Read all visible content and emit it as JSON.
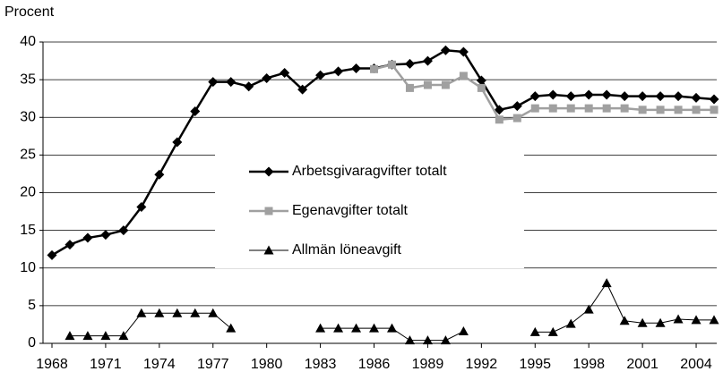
{
  "chart_data": {
    "type": "line",
    "y_label": "Procent",
    "x": [
      1968,
      1969,
      1970,
      1971,
      1972,
      1973,
      1974,
      1975,
      1976,
      1977,
      1978,
      1979,
      1980,
      1981,
      1982,
      1983,
      1984,
      1985,
      1986,
      1987,
      1988,
      1989,
      1990,
      1991,
      1992,
      1993,
      1994,
      1995,
      1996,
      1997,
      1998,
      1999,
      2000,
      2001,
      2002,
      2003,
      2004,
      2005
    ],
    "xlim": [
      1967.5,
      2005.5
    ],
    "xticks": [
      1968,
      1971,
      1974,
      1977,
      1980,
      1983,
      1986,
      1989,
      1992,
      1995,
      1998,
      2001,
      2004
    ],
    "ylim": [
      0,
      40
    ],
    "yticks": [
      0,
      5,
      10,
      15,
      20,
      25,
      30,
      35,
      40
    ],
    "grid": true,
    "legend": "center",
    "series": [
      {
        "name": "Arbetsgivaragvifter totalt",
        "color": "#000000",
        "marker": "diamond",
        "line_width": 2.5,
        "values": [
          11.7,
          13.1,
          14.0,
          14.4,
          15.0,
          18.1,
          22.4,
          26.7,
          30.8,
          34.7,
          34.7,
          34.1,
          35.2,
          35.9,
          33.7,
          35.6,
          36.1,
          36.5,
          36.5,
          37.0,
          37.1,
          37.5,
          38.9,
          38.7,
          34.9,
          31.0,
          31.5,
          32.8,
          33.0,
          32.8,
          33.0,
          33.0,
          32.8,
          32.8,
          32.8,
          32.8,
          32.6,
          32.4
        ]
      },
      {
        "name": "Egenavgifter totalt",
        "color": "#a0a0a0",
        "marker": "square",
        "line_width": 2.5,
        "values": [
          null,
          null,
          null,
          null,
          null,
          null,
          null,
          null,
          null,
          null,
          null,
          null,
          null,
          null,
          null,
          null,
          null,
          null,
          36.4,
          37.0,
          33.9,
          34.3,
          34.3,
          35.5,
          33.9,
          29.7,
          29.9,
          31.2,
          31.2,
          31.2,
          31.2,
          31.2,
          31.2,
          31.0,
          31.0,
          31.0,
          31.0,
          31.0
        ]
      },
      {
        "name": "Allmän löneavgift",
        "color": "#000000",
        "marker": "triangle",
        "line_width": 1,
        "values": [
          null,
          1.0,
          1.0,
          1.0,
          1.0,
          4.0,
          4.0,
          4.0,
          4.0,
          4.0,
          2.0,
          null,
          null,
          null,
          null,
          2.0,
          2.0,
          2.0,
          2.0,
          2.0,
          0.4,
          0.4,
          0.4,
          1.6,
          null,
          null,
          null,
          1.5,
          1.5,
          2.6,
          4.5,
          8.0,
          3.0,
          2.7,
          2.7,
          3.2,
          3.1,
          3.1
        ]
      }
    ]
  }
}
